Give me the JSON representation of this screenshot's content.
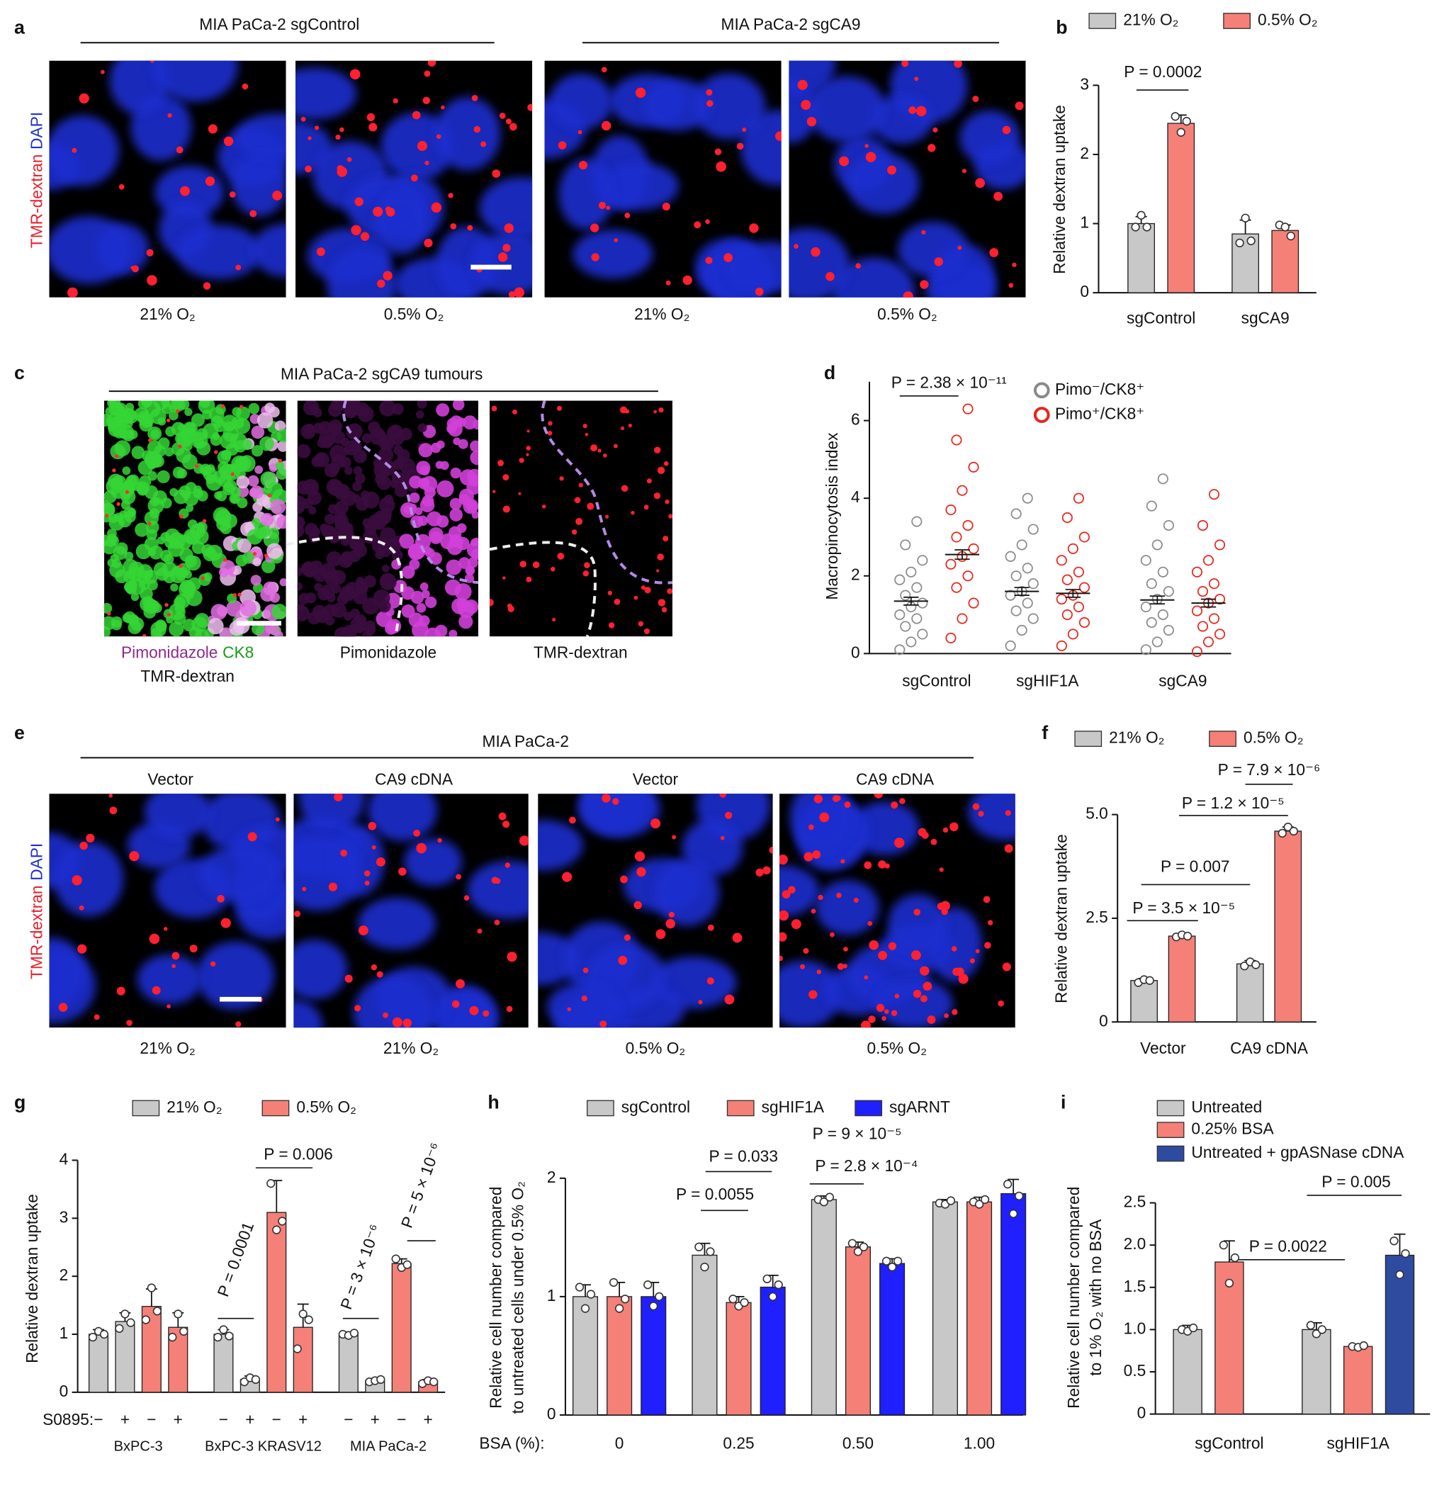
{
  "figure": {
    "panel_labels": [
      "a",
      "b",
      "c",
      "d",
      "e",
      "f",
      "g",
      "h",
      "i"
    ],
    "a": {
      "headers": [
        "MIA PaCa-2 sgControl",
        "MIA PaCa-2 sgCA9"
      ],
      "side_label": [
        "TMR-dextran",
        "DAPI"
      ],
      "captions": [
        "21% O₂",
        "0.5% O₂",
        "21% O₂",
        "0.5% O₂"
      ]
    },
    "c": {
      "header": "MIA PaCa-2 sgCA9 tumours",
      "captions": [
        [
          "Pimonidazole",
          "CK8",
          "TMR-dextran"
        ],
        [
          "Pimonidazole"
        ],
        [
          "TMR-dextran"
        ]
      ]
    },
    "e": {
      "header": "MIA PaCa-2",
      "column_headers": [
        "Vector",
        "CA9 cDNA",
        "Vector",
        "CA9 cDNA"
      ],
      "side_label": [
        "TMR-dextran",
        "DAPI"
      ],
      "captions": [
        "21% O₂",
        "21% O₂",
        "0.5% O₂",
        "0.5% O₂"
      ]
    }
  },
  "chart_data": [
    {
      "type": "bar",
      "ylabel": "Relative dextran uptake",
      "categories": [
        "sgControl",
        "sgCA9"
      ],
      "series": [
        {
          "name": "21% O₂",
          "color": "#c8c8c8",
          "values": [
            1.0,
            0.85
          ],
          "errors": [
            0.1,
            0.2
          ],
          "points": [
            [
              0.95,
              1.12,
              0.95
            ],
            [
              0.72,
              1.08,
              0.75
            ]
          ]
        },
        {
          "name": "0.5% O₂",
          "color": "#f58078",
          "values": [
            2.45,
            0.9
          ],
          "errors": [
            0.12,
            0.08
          ],
          "points": [
            [
              2.55,
              2.32,
              2.48
            ],
            [
              0.98,
              0.95,
              0.82
            ]
          ]
        }
      ],
      "ylim": [
        0,
        3
      ],
      "yticks": [
        0,
        1,
        2,
        3
      ],
      "annotations": [
        "P = 0.0002"
      ]
    },
    {
      "type": "strip",
      "ylabel": "Macropinocytosis index",
      "categories": [
        "sgControl",
        "sgHIF1A",
        "sgCA9"
      ],
      "series": [
        {
          "name": "Pimo⁻/CK8⁺",
          "color": "#8a8a8a",
          "values": [
            [
              0.1,
              0.3,
              0.5,
              0.7,
              0.9,
              1.0,
              1.2,
              1.3,
              1.5,
              1.7,
              1.9,
              2.1,
              2.4,
              2.8,
              3.4
            ],
            [
              0.2,
              0.6,
              0.9,
              1.1,
              1.3,
              1.5,
              1.6,
              1.8,
              2.0,
              2.2,
              2.5,
              2.8,
              3.2,
              3.6,
              4.0
            ],
            [
              0.1,
              0.3,
              0.6,
              0.8,
              1.0,
              1.2,
              1.4,
              1.6,
              1.8,
              2.1,
              2.4,
              2.8,
              3.3,
              3.8,
              4.5
            ]
          ],
          "means": [
            1.35,
            1.6,
            1.38
          ],
          "sems": [
            0.1,
            0.1,
            0.1
          ]
        },
        {
          "name": "Pimo⁺/CK8⁺",
          "color": "#e8251b",
          "values": [
            [
              0.4,
              0.9,
              1.3,
              1.7,
              2.0,
              2.3,
              2.5,
              2.7,
              3.0,
              3.3,
              3.7,
              4.2,
              4.8,
              5.5,
              6.3
            ],
            [
              0.2,
              0.5,
              0.8,
              1.0,
              1.2,
              1.4,
              1.5,
              1.7,
              1.9,
              2.1,
              2.4,
              2.7,
              3.0,
              3.5,
              4.0
            ],
            [
              0.05,
              0.3,
              0.5,
              0.7,
              0.9,
              1.1,
              1.3,
              1.4,
              1.6,
              1.8,
              2.1,
              2.4,
              2.8,
              3.3,
              4.1
            ]
          ],
          "means": [
            2.55,
            1.55,
            1.3
          ],
          "sems": [
            0.12,
            0.1,
            0.1
          ]
        }
      ],
      "ylim": [
        0,
        7
      ],
      "yticks": [
        0,
        2,
        4,
        6
      ],
      "annotations": [
        "P = 2.38 × 10⁻¹¹"
      ]
    },
    {
      "type": "bar",
      "ylabel": "Relative dextran uptake",
      "categories": [
        "Vector",
        "CA9 cDNA"
      ],
      "series": [
        {
          "name": "21% O₂",
          "color": "#c8c8c8",
          "values": [
            1.0,
            1.4
          ],
          "errors": [
            0.05,
            0.08
          ],
          "points": [
            [
              0.95,
              1.02,
              1.0
            ],
            [
              1.35,
              1.45,
              1.38
            ]
          ]
        },
        {
          "name": "0.5% O₂",
          "color": "#f58078",
          "values": [
            2.07,
            4.6
          ],
          "errors": [
            0.04,
            0.1
          ],
          "points": [
            [
              2.05,
              2.1,
              2.07
            ],
            [
              4.55,
              4.7,
              4.6
            ]
          ]
        }
      ],
      "ylim": [
        0,
        5
      ],
      "yticks": [
        0,
        2.5,
        {
          "value": 5,
          "label": "5.0"
        }
      ],
      "annotations": [
        "P = 3.5 × 10⁻⁵",
        "P = 0.007",
        "P = 1.2 × 10⁻⁵",
        "P = 7.9 × 10⁻⁶"
      ]
    },
    {
      "type": "bar",
      "ylabel": "Relative dextran uptake",
      "categories": [
        "BxPC-3",
        "BxPC-3 KRASV12",
        "MIA PaCa-2"
      ],
      "treatment_label": "S0895:",
      "treatments": [
        "−",
        "+"
      ],
      "series": [
        {
          "name": "21% O₂",
          "color": "#c8c8c8",
          "values": [
            [
              1.0,
              1.22
            ],
            [
              1.0,
              0.22
            ],
            [
              1.0,
              0.2
            ]
          ],
          "errors": [
            [
              0.08,
              0.15
            ],
            [
              0.08,
              0.06
            ],
            [
              0.04,
              0.03
            ]
          ],
          "points": [
            [
              [
                0.95,
                1.05,
                1.0
              ],
              [
                1.1,
                1.35,
                1.2
              ]
            ],
            [
              [
                0.95,
                1.08,
                0.97
              ],
              [
                0.18,
                0.25,
                0.22
              ]
            ],
            [
              [
                1.0,
                0.98,
                1.02
              ],
              [
                0.18,
                0.2,
                0.22
              ]
            ]
          ]
        },
        {
          "name": "0.5% O₂",
          "color": "#f58078",
          "values": [
            [
              1.48,
              1.12
            ],
            [
              3.1,
              1.12
            ],
            [
              2.22,
              0.18
            ]
          ],
          "errors": [
            [
              0.3,
              0.25
            ],
            [
              0.55,
              0.4
            ],
            [
              0.08,
              0.04
            ]
          ],
          "points": [
            [
              [
                1.25,
                1.8,
                1.4
              ],
              [
                0.95,
                1.35,
                1.05
              ]
            ],
            [
              [
                3.6,
                2.8,
                2.95
              ],
              [
                0.75,
                1.35,
                1.25
              ]
            ],
            [
              [
                2.3,
                2.15,
                2.2
              ],
              [
                0.15,
                0.2,
                0.18
              ]
            ]
          ]
        }
      ],
      "ylim": [
        0,
        4
      ],
      "yticks": [
        0,
        1,
        2,
        3,
        4
      ],
      "annotations": [
        "P = 0.0001",
        "P = 0.006",
        "P = 3 × 10⁻⁶",
        "P = 5 × 10⁻⁶"
      ]
    },
    {
      "type": "bar",
      "ylabel": [
        "Relative cell number compared",
        "to untreated cells under 0.5% O₂"
      ],
      "category_label": "BSA (%):",
      "categories": [
        "0",
        "0.25",
        "0.50",
        "1.00"
      ],
      "series": [
        {
          "name": "sgControl",
          "color": "#c8c8c8",
          "values": [
            1.0,
            1.35,
            1.82,
            1.8
          ],
          "errors": [
            0.1,
            0.1,
            0.03,
            0.02
          ],
          "points": [
            [
              1.08,
              0.9,
              1.02
            ],
            [
              1.42,
              1.25,
              1.38
            ],
            [
              1.82,
              1.8,
              1.84
            ],
            [
              1.79,
              1.78,
              1.81
            ]
          ]
        },
        {
          "name": "sgHIF1A",
          "color": "#f58078",
          "values": [
            1.0,
            0.95,
            1.42,
            1.8
          ],
          "errors": [
            0.12,
            0.05,
            0.04,
            0.04
          ],
          "points": [
            [
              1.12,
              0.9,
              0.98
            ],
            [
              0.98,
              0.92,
              0.95
            ],
            [
              1.45,
              1.38,
              1.42
            ],
            [
              1.8,
              1.78,
              1.82
            ]
          ]
        },
        {
          "name": "sgARNT",
          "color": "#1f1fff",
          "values": [
            1.0,
            1.08,
            1.28,
            1.87
          ],
          "errors": [
            0.12,
            0.1,
            0.04,
            0.12
          ],
          "points": [
            [
              1.1,
              0.92,
              1.0
            ],
            [
              1.15,
              1.0,
              1.1
            ],
            [
              1.3,
              1.25,
              1.3
            ],
            [
              1.95,
              1.7,
              1.85
            ]
          ]
        }
      ],
      "ylim": [
        0,
        2
      ],
      "yticks": [
        0,
        1,
        2
      ],
      "annotations": [
        "P = 0.0055",
        "P = 0.033",
        "P = 2.8 × 10⁻⁴",
        "P = 9 × 10⁻⁵"
      ]
    },
    {
      "type": "bar",
      "ylabel": [
        "Relative cell number compared",
        "to 1% O₂ with no BSA"
      ],
      "categories": [
        "sgControl",
        "sgHIF1A"
      ],
      "series": [
        {
          "name": "Untreated",
          "color": "#c8c8c8",
          "values": [
            1.0,
            1.0
          ],
          "errors": [
            0.05,
            0.08
          ],
          "points": [
            [
              1.0,
              0.98,
              1.02
            ],
            [
              1.05,
              0.95,
              1.0
            ]
          ]
        },
        {
          "name": "0.25% BSA",
          "color": "#f58078",
          "values": [
            1.8,
            0.8
          ],
          "errors": [
            0.25,
            0.02
          ],
          "points": [
            [
              2.0,
              1.55,
              1.85
            ],
            [
              0.8,
              0.79,
              0.81
            ]
          ]
        },
        {
          "name": "Untreated + gpASNase cDNA",
          "color": "#2f4b9f",
          "values": [
            null,
            1.88
          ],
          "errors": [
            null,
            0.25
          ],
          "points": [
            null,
            [
              2.05,
              1.65,
              1.9
            ]
          ]
        }
      ],
      "ylim": [
        0,
        2.5
      ],
      "yticks": [
        0,
        0.5,
        {
          "value": 1,
          "label": "1.0"
        },
        1.5,
        {
          "value": 2,
          "label": "2.0"
        },
        2.5
      ],
      "annotations": [
        "P = 0.0022",
        "P = 0.005"
      ]
    }
  ]
}
